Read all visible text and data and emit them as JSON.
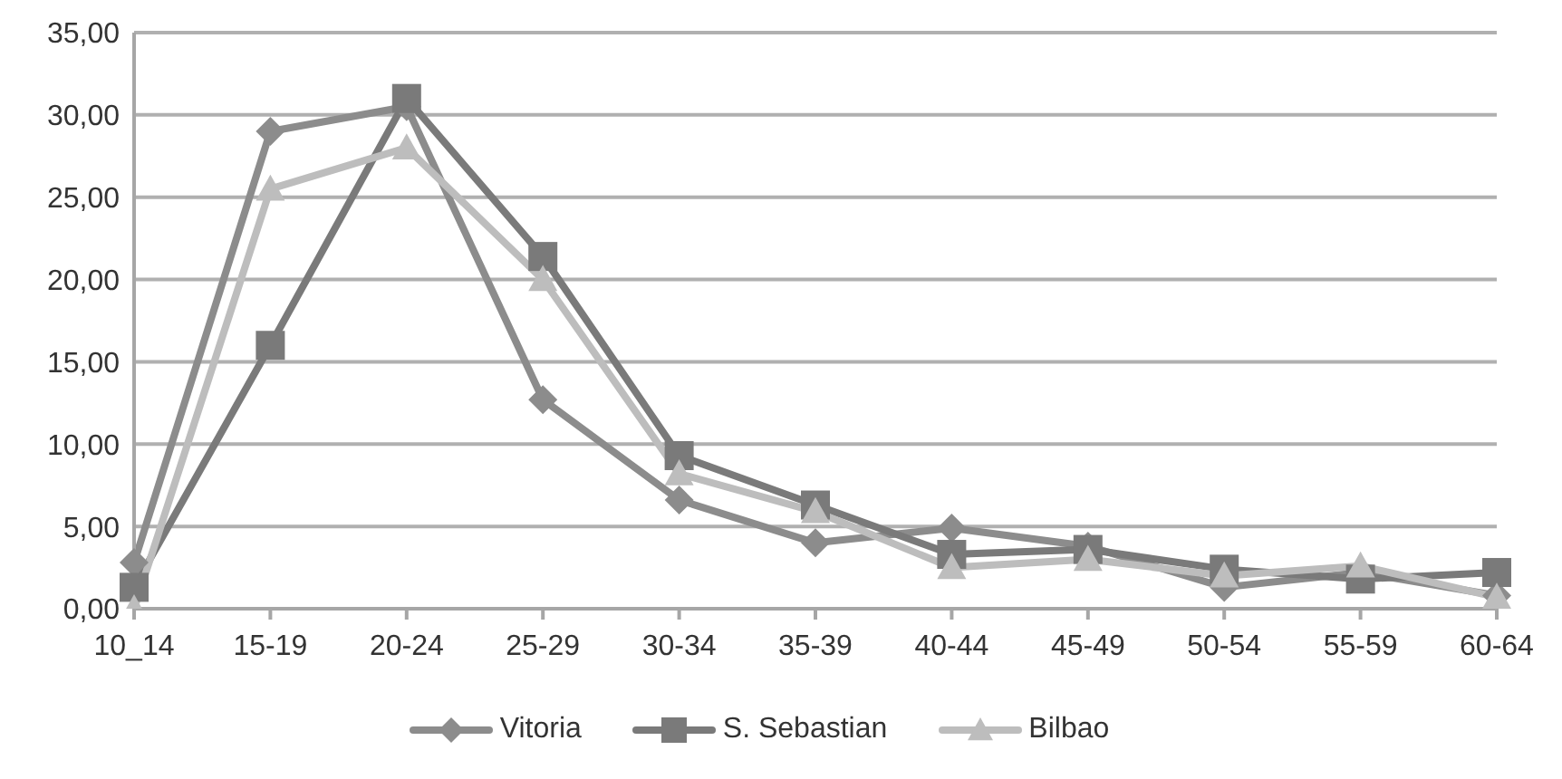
{
  "chart_data": {
    "type": "line",
    "categories": [
      "10_14",
      "15-19",
      "20-24",
      "25-29",
      "30-34",
      "35-39",
      "40-44",
      "45-49",
      "50-54",
      "55-59",
      "60-64"
    ],
    "series": [
      {
        "name": "Vitoria",
        "color": "#8c8c8c",
        "marker": "diamond",
        "values": [
          2.8,
          29.0,
          30.5,
          12.7,
          6.6,
          4.0,
          4.9,
          3.8,
          1.3,
          2.2,
          0.8
        ]
      },
      {
        "name": "S. Sebastian",
        "color": "#7a7a7a",
        "marker": "square",
        "values": [
          1.3,
          16.0,
          31.0,
          21.4,
          9.3,
          6.3,
          3.3,
          3.6,
          2.4,
          1.8,
          2.2
        ]
      },
      {
        "name": "Bilbao",
        "color": "#bdbdbd",
        "marker": "triangle",
        "values": [
          0.0,
          25.5,
          28.0,
          20.0,
          8.2,
          5.9,
          2.5,
          3.0,
          2.0,
          2.6,
          0.7
        ]
      }
    ],
    "ylim": [
      0,
      35
    ],
    "yticks": [
      {
        "value": 0,
        "label": "0,00"
      },
      {
        "value": 5,
        "label": "5,00"
      },
      {
        "value": 10,
        "label": "10,00"
      },
      {
        "value": 15,
        "label": "15,00"
      },
      {
        "value": 20,
        "label": "20,00"
      },
      {
        "value": 25,
        "label": "25,00"
      },
      {
        "value": 30,
        "label": "30,00"
      },
      {
        "value": 35,
        "label": "35,00"
      }
    ],
    "grid": "y",
    "legend": "bottom",
    "line_style": "solid"
  }
}
